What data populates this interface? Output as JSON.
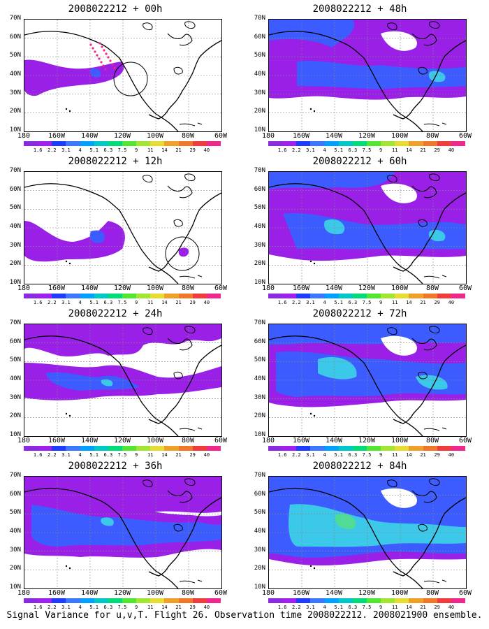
{
  "figure": {
    "caption": "Signal Variance for u,v,T. Flight 26. Observation time 2008022212. 2008021900 ensemble."
  },
  "axes": {
    "lat_labels": [
      "70N",
      "60N",
      "50N",
      "40N",
      "30N",
      "20N",
      "10N"
    ],
    "lon_labels": [
      "180",
      "160W",
      "140W",
      "120W",
      "100W",
      "80W",
      "60W"
    ]
  },
  "colorbar": {
    "labels": [
      "1.6",
      "2.2",
      "3.1",
      "4",
      "5.1",
      "6.3",
      "7.5",
      "9",
      "11",
      "14",
      "21",
      "29",
      "40"
    ],
    "colors": [
      "#8a2be2",
      "#a020f0",
      "#1e3cff",
      "#3c78ff",
      "#00a0ff",
      "#00c8c8",
      "#00dc78",
      "#50e632",
      "#a0e632",
      "#e6dc32",
      "#f0a028",
      "#f07828",
      "#f03c3c",
      "#f0288c"
    ]
  },
  "panels": [
    {
      "title": "2008022212 + 00h",
      "variant": 0
    },
    {
      "title": "2008022212 + 48h",
      "variant": 4
    },
    {
      "title": "2008022212 + 12h",
      "variant": 1
    },
    {
      "title": "2008022212 + 60h",
      "variant": 5
    },
    {
      "title": "2008022212 + 24h",
      "variant": 2
    },
    {
      "title": "2008022212 + 72h",
      "variant": 6
    },
    {
      "title": "2008022212 + 36h",
      "variant": 3
    },
    {
      "title": "2008022212 + 84h",
      "variant": 7
    }
  ]
}
